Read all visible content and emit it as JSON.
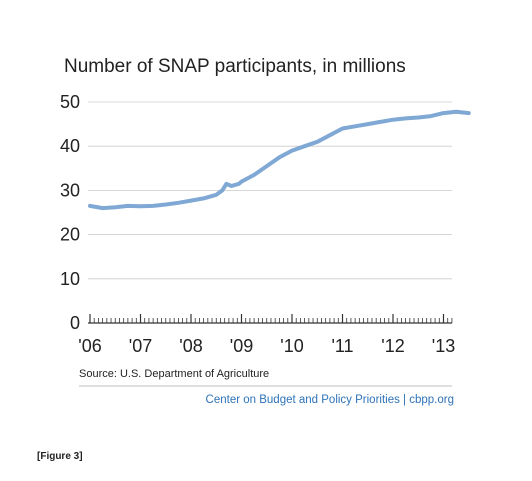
{
  "chart_data": {
    "type": "line",
    "title": "Number of SNAP participants, in millions",
    "xlabel": "",
    "ylabel": "",
    "ylim": [
      0,
      50
    ],
    "yticks": [
      "0",
      "10",
      "20",
      "30",
      "40",
      "50"
    ],
    "xticks": [
      "'06",
      "'07",
      "'08",
      "'09",
      "'10",
      "'11",
      "'12",
      "'13"
    ],
    "grid": true,
    "series": [
      {
        "color": "#7fa8d4",
        "points": [
          [
            2006.0,
            26.5
          ],
          [
            2006.25,
            26.0
          ],
          [
            2006.5,
            26.2
          ],
          [
            2006.75,
            26.5
          ],
          [
            2007.0,
            26.4
          ],
          [
            2007.25,
            26.5
          ],
          [
            2007.5,
            26.8
          ],
          [
            2007.75,
            27.2
          ],
          [
            2008.0,
            27.7
          ],
          [
            2008.25,
            28.2
          ],
          [
            2008.5,
            29.0
          ],
          [
            2008.62,
            30.0
          ],
          [
            2008.7,
            31.5
          ],
          [
            2008.8,
            31.0
          ],
          [
            2008.95,
            31.5
          ],
          [
            2009.0,
            32.0
          ],
          [
            2009.25,
            33.5
          ],
          [
            2009.5,
            35.5
          ],
          [
            2009.75,
            37.5
          ],
          [
            2010.0,
            39.0
          ],
          [
            2010.25,
            40.0
          ],
          [
            2010.5,
            41.0
          ],
          [
            2010.75,
            42.5
          ],
          [
            2011.0,
            44.0
          ],
          [
            2011.25,
            44.5
          ],
          [
            2011.5,
            45.0
          ],
          [
            2011.75,
            45.5
          ],
          [
            2012.0,
            46.0
          ],
          [
            2012.25,
            46.3
          ],
          [
            2012.5,
            46.5
          ],
          [
            2012.75,
            46.8
          ],
          [
            2013.0,
            47.5
          ],
          [
            2013.25,
            47.8
          ],
          [
            2013.5,
            47.5
          ]
        ]
      }
    ]
  },
  "source": "Source: U.S. Department of Agriculture",
  "credit": "Center on Budget and Policy Priorities | cbpp.org",
  "figure_label": "[Figure 3]",
  "colors": {
    "line": "#7fa8d4",
    "grid": "#cccccc",
    "axis": "#333333",
    "credit": "#2e73b8",
    "divider": "#aaaaaa"
  }
}
